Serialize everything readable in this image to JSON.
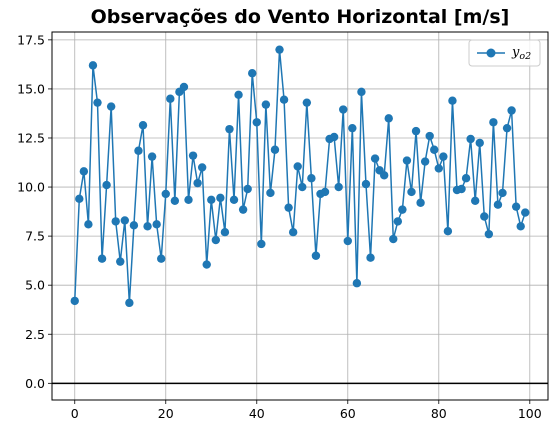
{
  "chart_data": {
    "type": "line",
    "title": "Observações do Vento Horizontal [m/s]",
    "xlabel": "",
    "ylabel": "",
    "xlim": [
      -5,
      104
    ],
    "ylim": [
      -0.85,
      17.9
    ],
    "xticks": [
      0,
      20,
      40,
      60,
      80,
      100
    ],
    "yticks": [
      0.0,
      2.5,
      5.0,
      7.5,
      10.0,
      12.5,
      15.0,
      17.5
    ],
    "xtick_labels": [
      "0",
      "20",
      "40",
      "60",
      "80",
      "100"
    ],
    "ytick_labels": [
      "0.0",
      "2.5",
      "5.0",
      "7.5",
      "10.0",
      "12.5",
      "15.0",
      "17.5"
    ],
    "grid": true,
    "legend_position": "top-right",
    "reference_line": {
      "y": 0,
      "color": "#000000"
    },
    "series": [
      {
        "name": "y_o2",
        "legend_main": "y",
        "legend_sub": "o2",
        "color": "#1f77b4",
        "marker": "circle",
        "x": [
          0,
          1,
          2,
          3,
          4,
          5,
          6,
          7,
          8,
          9,
          10,
          11,
          12,
          13,
          14,
          15,
          16,
          17,
          18,
          19,
          20,
          21,
          22,
          23,
          24,
          25,
          26,
          27,
          28,
          29,
          30,
          31,
          32,
          33,
          34,
          35,
          36,
          37,
          38,
          39,
          40,
          41,
          42,
          43,
          44,
          45,
          46,
          47,
          48,
          49,
          50,
          51,
          52,
          53,
          54,
          55,
          56,
          57,
          58,
          59,
          60,
          61,
          62,
          63,
          64,
          65,
          66,
          67,
          68,
          69,
          70,
          71,
          72,
          73,
          74,
          75,
          76,
          77,
          78,
          79,
          80,
          81,
          82,
          83,
          84,
          85,
          86,
          87,
          88,
          89,
          90,
          91,
          92,
          93,
          94,
          95,
          96,
          97,
          98,
          99
        ],
        "values": [
          4.2,
          9.4,
          10.8,
          8.1,
          16.2,
          14.3,
          6.35,
          10.1,
          14.1,
          8.25,
          6.2,
          8.3,
          4.1,
          8.05,
          11.85,
          13.15,
          8.0,
          11.55,
          8.1,
          6.35,
          9.65,
          14.5,
          9.3,
          14.85,
          15.1,
          9.35,
          11.6,
          10.2,
          11.0,
          6.05,
          9.35,
          7.3,
          9.45,
          7.7,
          12.95,
          9.35,
          14.7,
          8.85,
          9.9,
          15.8,
          13.3,
          7.1,
          14.2,
          9.7,
          11.9,
          17.0,
          14.45,
          8.95,
          7.7,
          11.05,
          10.0,
          14.3,
          10.45,
          6.5,
          9.65,
          9.75,
          12.45,
          12.55,
          10.0,
          13.95,
          7.25,
          13.0,
          5.1,
          14.85,
          10.15,
          6.4,
          11.45,
          10.85,
          10.6,
          13.5,
          7.35,
          8.25,
          8.85,
          11.35,
          9.75,
          12.85,
          9.2,
          11.3,
          12.6,
          11.9,
          10.95,
          11.55,
          7.75,
          14.4,
          9.85,
          9.9,
          10.45,
          12.45,
          9.3,
          12.25,
          8.5,
          7.6,
          13.3,
          9.1,
          9.7,
          13.0,
          13.9,
          9.0,
          8.0,
          8.7
        ]
      }
    ]
  }
}
